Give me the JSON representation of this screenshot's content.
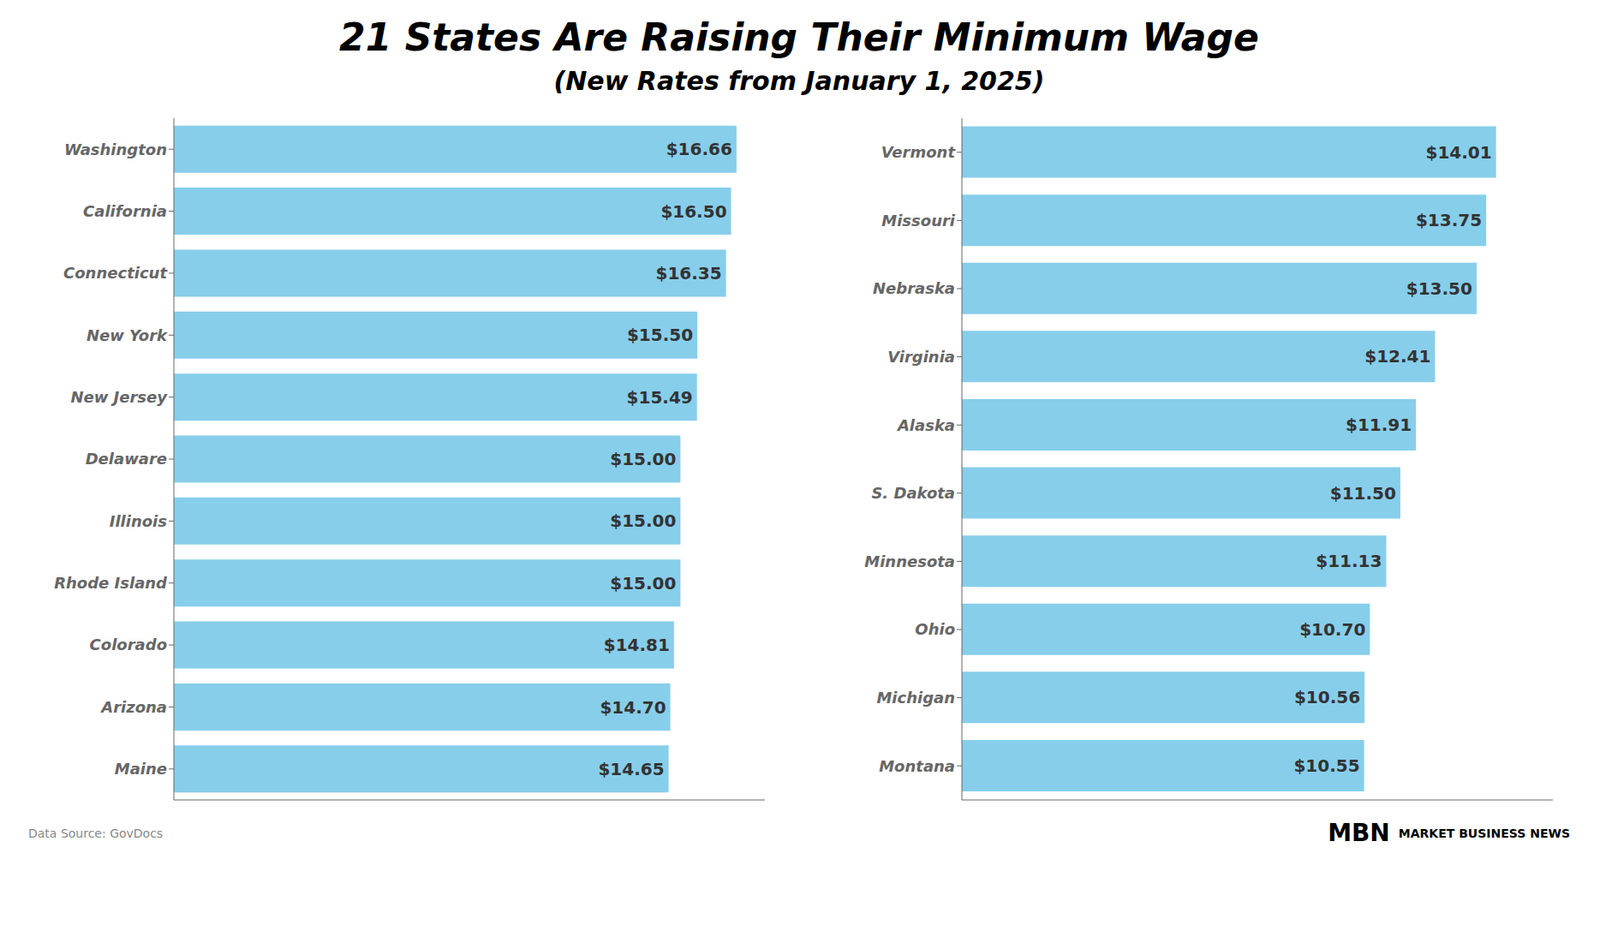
{
  "title": "21 States Are Raising Their Minimum Wage",
  "subtitle": "(New Rates from January 1, 2025)",
  "annotations": [
    "Data Source: GovDocs",
    "MBN",
    "MARKET BUSINESS NEWS"
  ],
  "chart_data": [
    {
      "type": "bar",
      "orientation": "horizontal",
      "categories": [
        "Washington",
        "California",
        "Connecticut",
        "New York",
        "New Jersey",
        "Delaware",
        "Illinois",
        "Rhode Island",
        "Colorado",
        "Arizona",
        "Maine"
      ],
      "values": [
        16.66,
        16.5,
        16.35,
        15.5,
        15.49,
        15.0,
        15.0,
        15.0,
        14.81,
        14.7,
        14.65
      ],
      "value_labels": [
        "$16.66",
        "$16.50",
        "$16.35",
        "$15.50",
        "$15.49",
        "$15.00",
        "$15.00",
        "$15.00",
        "$14.81",
        "$14.70",
        "$14.65"
      ],
      "data_labels": true,
      "color": "#87CEEB",
      "xlim": [
        0,
        17.5
      ],
      "tick_labels": "y",
      "grid": false
    },
    {
      "type": "bar",
      "orientation": "horizontal",
      "categories": [
        "Vermont",
        "Missouri",
        "Nebraska",
        "Virginia",
        "Alaska",
        "S. Dakota",
        "Minnesota",
        "Ohio",
        "Michigan",
        "Montana"
      ],
      "values": [
        14.01,
        13.75,
        13.5,
        12.41,
        11.91,
        11.5,
        11.13,
        10.7,
        10.56,
        10.55
      ],
      "value_labels": [
        "$14.01",
        "$13.75",
        "$13.50",
        "$12.41",
        "$11.91",
        "$11.50",
        "$11.13",
        "$10.70",
        "$10.56",
        "$10.55"
      ],
      "data_labels": true,
      "color": "#87CEEB",
      "xlim": [
        0,
        15.5
      ],
      "tick_labels": "y",
      "grid": false
    }
  ]
}
